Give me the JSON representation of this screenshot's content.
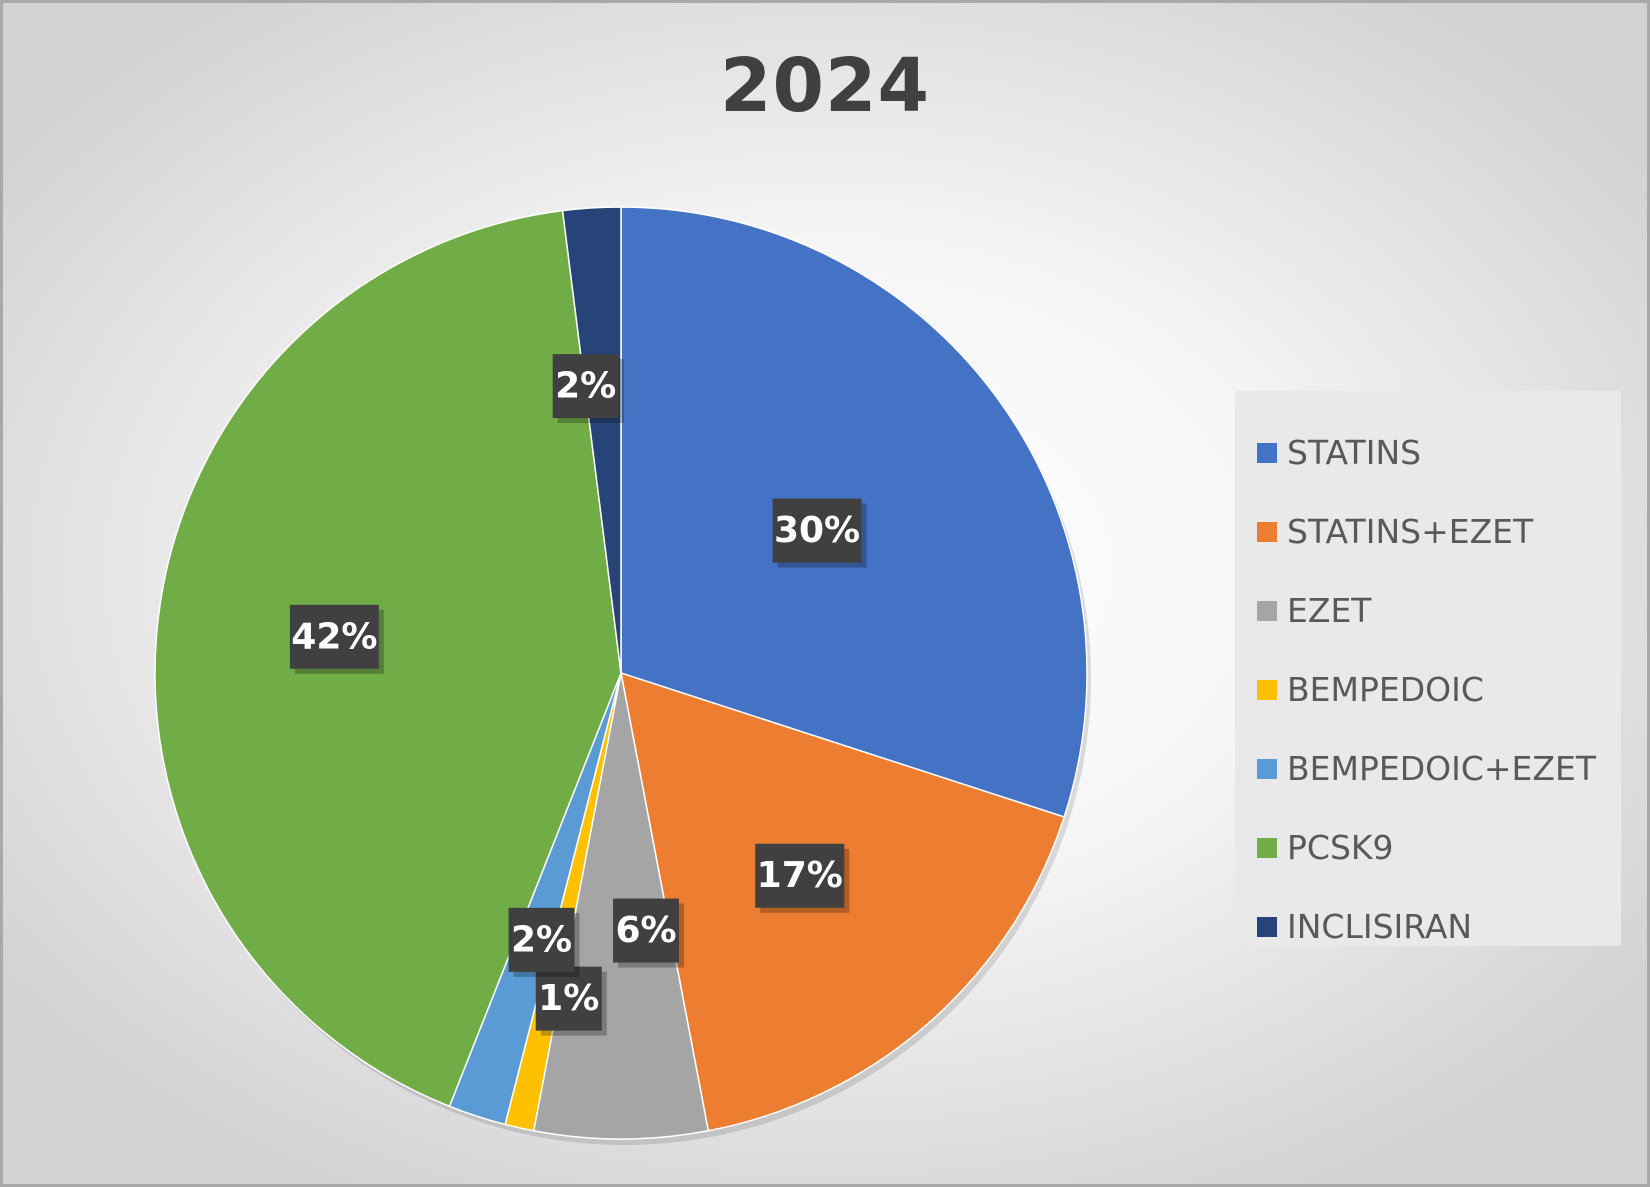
{
  "chart_data": {
    "type": "pie",
    "title": "2024",
    "legend_position": "right",
    "slices": [
      {
        "label": "STATINS",
        "value": 30,
        "color": "#4472c4",
        "data_label": "30%"
      },
      {
        "label": "STATINS+EZET",
        "value": 17,
        "color": "#ed7d31",
        "data_label": "17%"
      },
      {
        "label": "EZET",
        "value": 6,
        "color": "#a5a5a5",
        "data_label": "6%"
      },
      {
        "label": "BEMPEDOIC",
        "value": 1,
        "color": "#ffc000",
        "data_label": "1%"
      },
      {
        "label": "BEMPEDOIC+EZET",
        "value": 2,
        "color": "#5b9bd5",
        "data_label": "2%"
      },
      {
        "label": "PCSK9",
        "value": 42,
        "color": "#70ad47",
        "data_label": "42%"
      },
      {
        "label": "INCLISIRAN",
        "value": 2,
        "color": "#264478",
        "data_label": "2%"
      }
    ]
  }
}
